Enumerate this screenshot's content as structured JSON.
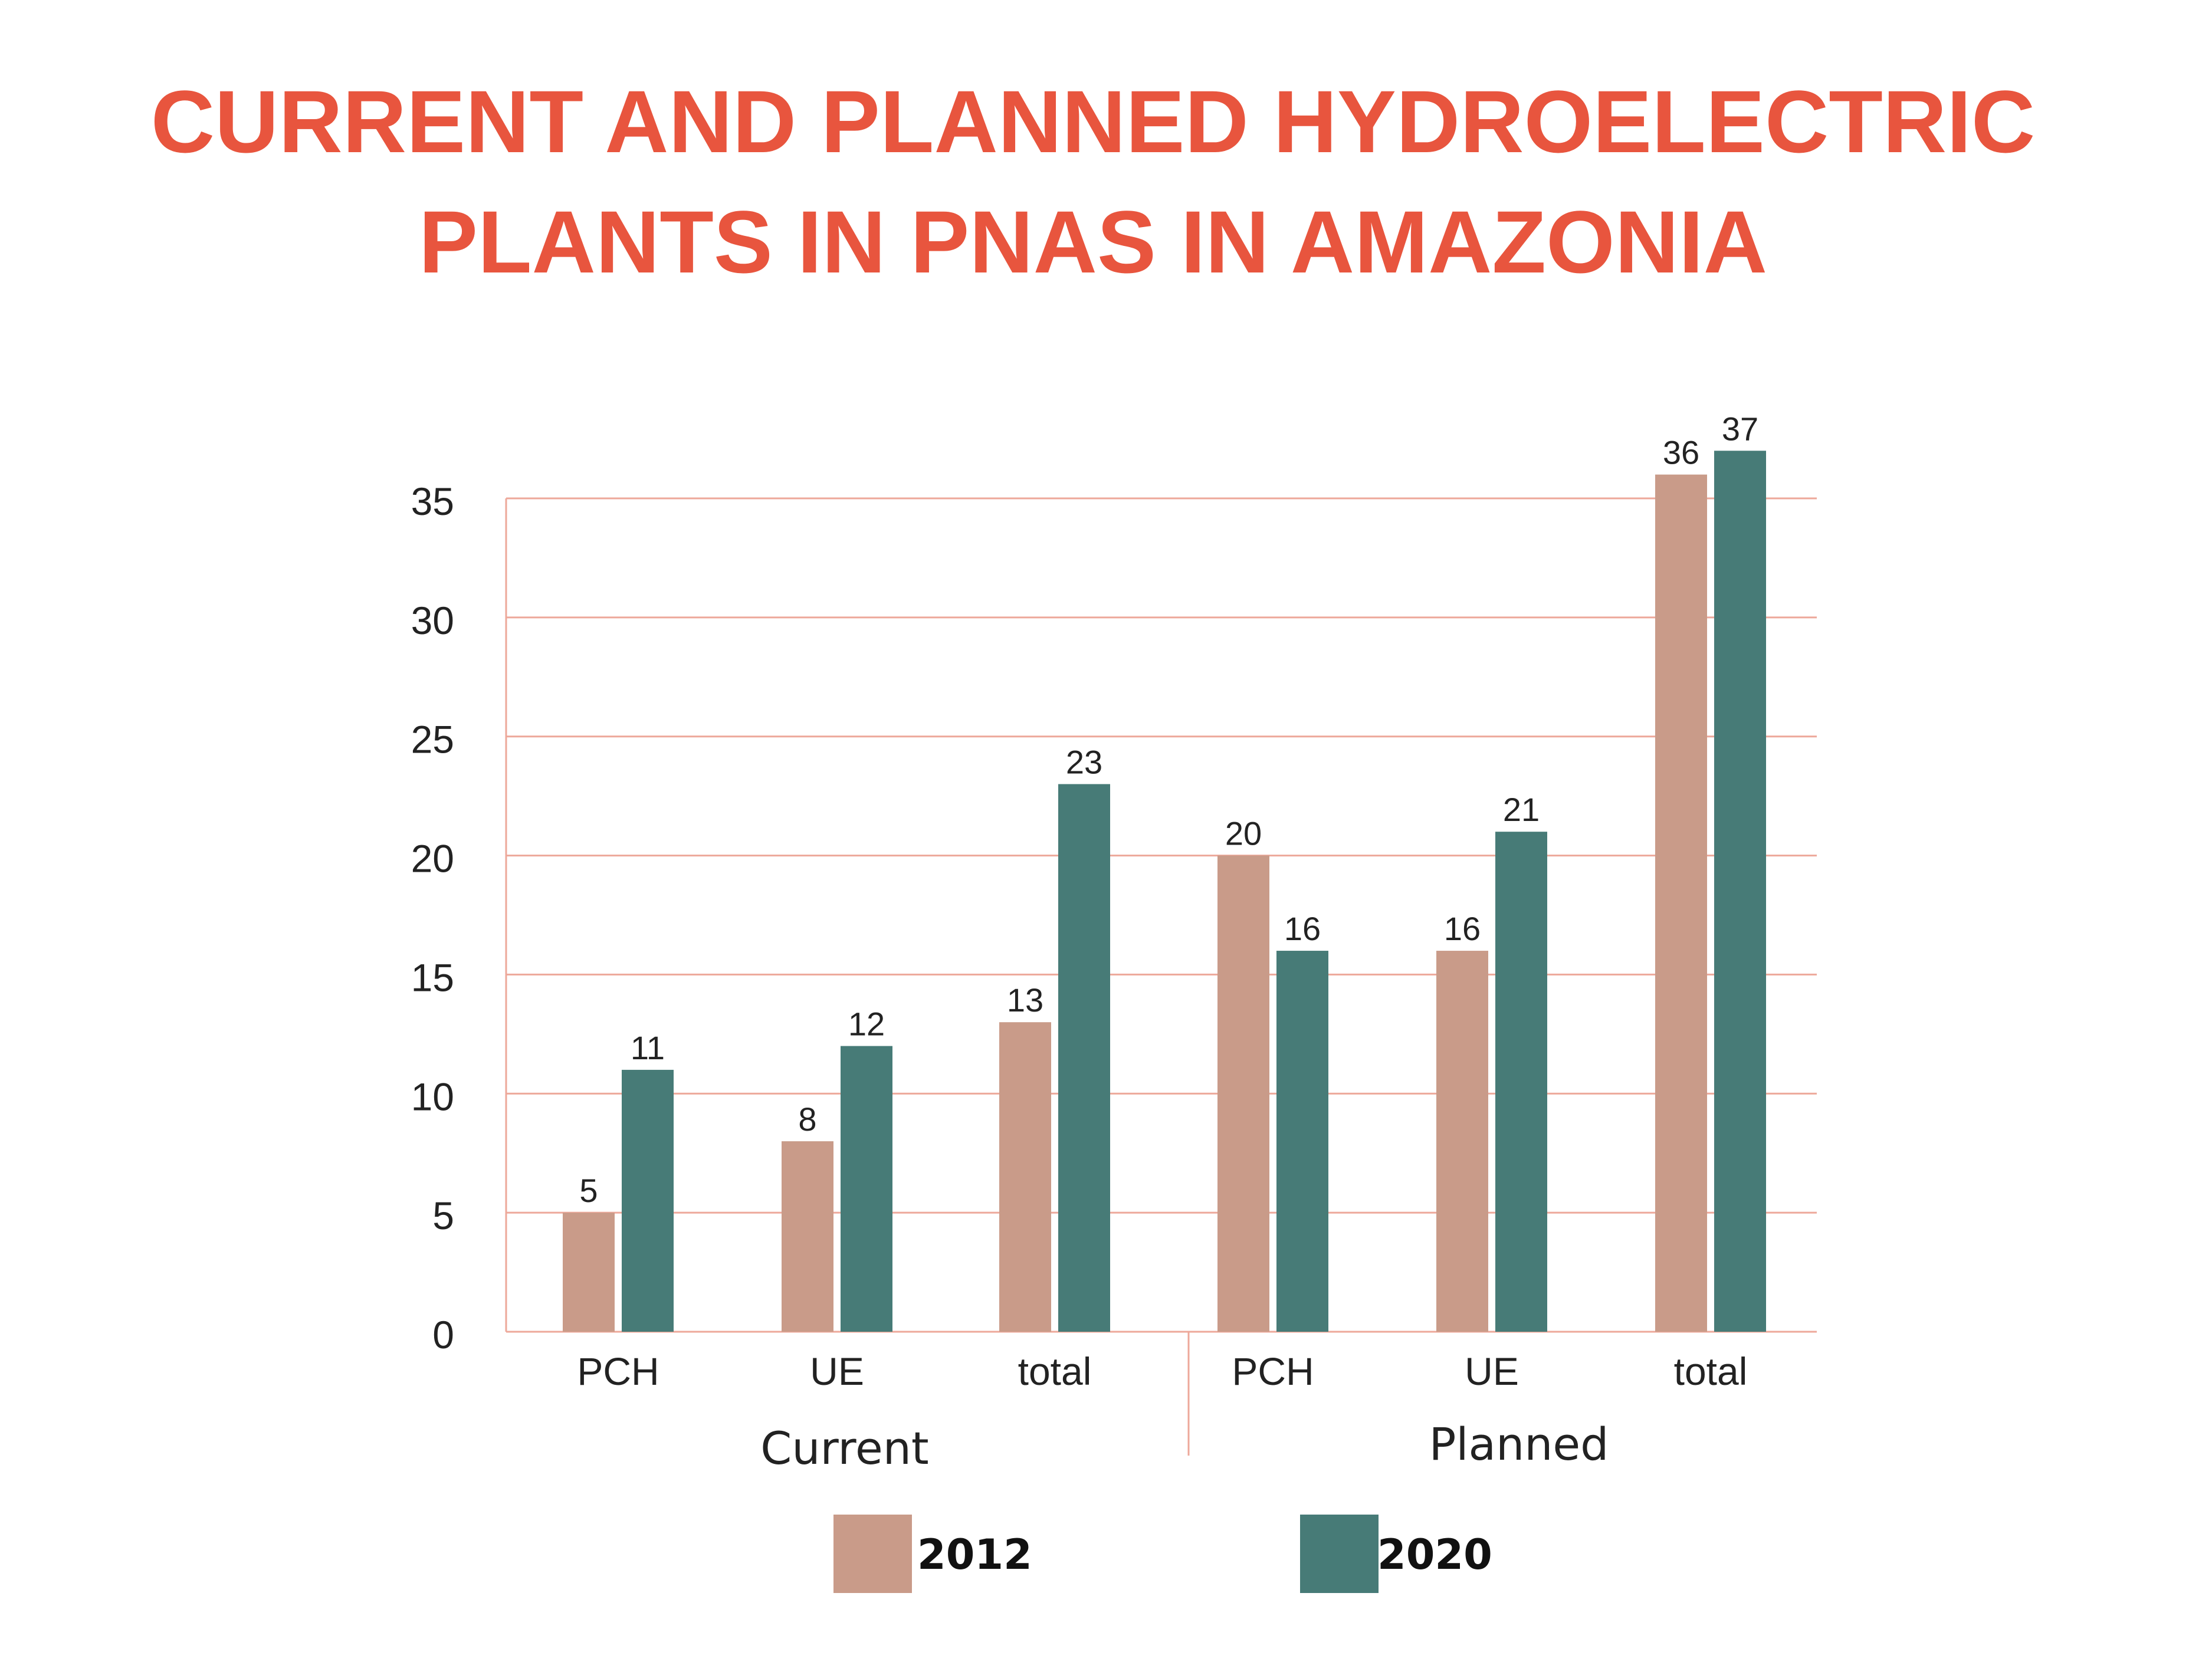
{
  "chart_data": {
    "type": "bar",
    "title_lines": [
      "CURRENT AND PLANNED HYDROELECTRIC",
      "PLANTS IN PNAS IN AMAZONIA"
    ],
    "groups": [
      {
        "name": "Current",
        "categories": [
          "PCH",
          "UE",
          "total"
        ]
      },
      {
        "name": "Planned",
        "categories": [
          "PCH",
          "UE",
          "total"
        ]
      }
    ],
    "categories": [
      "PCH",
      "UE",
      "total",
      "PCH",
      "UE",
      "total"
    ],
    "series": [
      {
        "name": "2012",
        "color": "#c99b89",
        "values": [
          5,
          8,
          13,
          20,
          16,
          36
        ]
      },
      {
        "name": "2020",
        "color": "#477b77",
        "values": [
          11,
          12,
          23,
          16,
          21,
          37
        ]
      }
    ],
    "yticks": [
      "0",
      "5",
      "10",
      "15",
      "20",
      "25",
      "30",
      "35"
    ],
    "ylim": [
      0,
      35
    ],
    "grid": true,
    "legend": "bottom",
    "colors": {
      "title": "#e8553e",
      "grid": "#eda89a",
      "text": "#222222"
    }
  }
}
